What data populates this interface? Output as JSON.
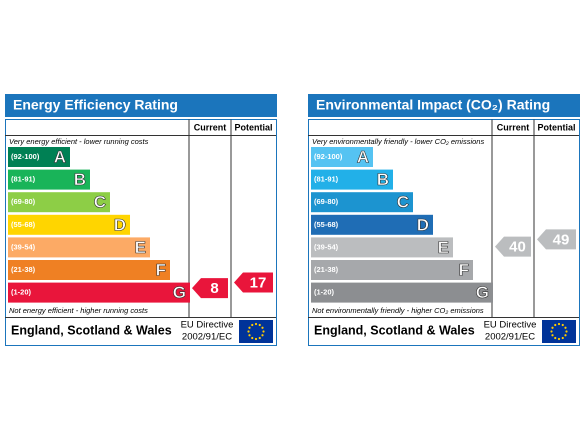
{
  "panels": [
    {
      "title": "Energy Efficiency Rating",
      "header": {
        "current": "Current",
        "potential": "Potential"
      },
      "top_note": "Very energy efficient - lower running costs",
      "bottom_note": "Not energy efficient - higher running costs",
      "bands": [
        {
          "range": "(92-100)",
          "letter": "A",
          "color": "#008054"
        },
        {
          "range": "(81-91)",
          "letter": "B",
          "color": "#19b459"
        },
        {
          "range": "(69-80)",
          "letter": "C",
          "color": "#8dce46"
        },
        {
          "range": "(55-68)",
          "letter": "D",
          "color": "#ffd500"
        },
        {
          "range": "(39-54)",
          "letter": "E",
          "color": "#fcaa65"
        },
        {
          "range": "(21-38)",
          "letter": "F",
          "color": "#ef8023"
        },
        {
          "range": "(1-20)",
          "letter": "G",
          "color": "#e9153b"
        }
      ],
      "current": {
        "value": 8,
        "color": "#e9153b"
      },
      "potential": {
        "value": 17,
        "color": "#e9153b"
      },
      "footer": {
        "region": "England, Scotland & Wales",
        "directive": "EU Directive",
        "code": "2002/91/EC"
      }
    },
    {
      "title": "Environmental Impact (CO₂) Rating",
      "header": {
        "current": "Current",
        "potential": "Potential"
      },
      "top_note": "Very environmentally friendly - lower CO₂ emissions",
      "bottom_note": "Not environmentally friendly - higher CO₂ emissions",
      "bands": [
        {
          "range": "(92-100)",
          "letter": "A",
          "color": "#55c3f2"
        },
        {
          "range": "(81-91)",
          "letter": "B",
          "color": "#22b0e8"
        },
        {
          "range": "(69-80)",
          "letter": "C",
          "color": "#1c94d0"
        },
        {
          "range": "(55-68)",
          "letter": "D",
          "color": "#1f6db5"
        },
        {
          "range": "(39-54)",
          "letter": "E",
          "color": "#bbbdbf"
        },
        {
          "range": "(21-38)",
          "letter": "F",
          "color": "#a6a8ab"
        },
        {
          "range": "(1-20)",
          "letter": "G",
          "color": "#8c8e91"
        }
      ],
      "current": {
        "value": 40,
        "color": "#bbbdbf"
      },
      "potential": {
        "value": 49,
        "color": "#bbbdbf"
      },
      "footer": {
        "region": "England, Scotland & Wales",
        "directive": "EU Directive",
        "code": "2002/91/EC"
      }
    }
  ]
}
